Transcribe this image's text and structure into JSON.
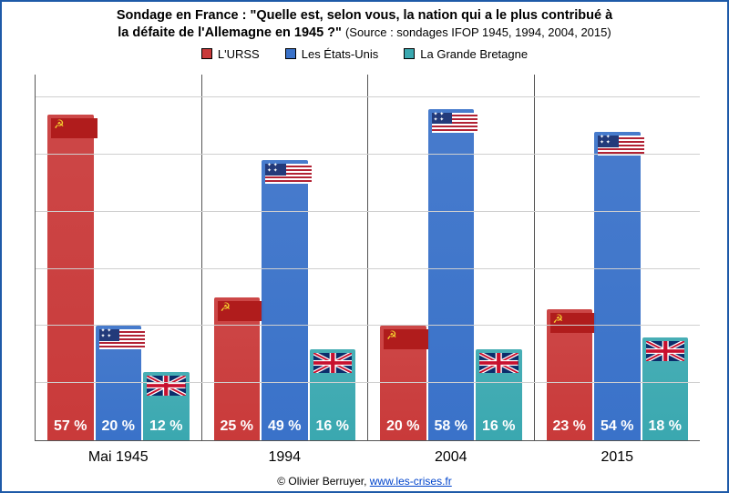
{
  "title_line1": "Sondage en France : \"Quelle est, selon vous, la nation qui a le plus contribué à",
  "title_line2": "la défaite de l'Allemagne en 1945 ?\"",
  "source_text": "(Source : sondages IFOP 1945, 1994, 2004, 2015)",
  "legend": {
    "ussr": "L'URSS",
    "us": "Les États-Unis",
    "uk": "La Grande Bretagne"
  },
  "series_colors": {
    "ussr": "#c93a3a",
    "us": "#3a72c9",
    "uk": "#3aa8b0"
  },
  "background_color": "#ffffff",
  "border_color": "#1e5aa8",
  "gridline_color": "#cfcfcf",
  "bar_label_color": "#ffffff",
  "bar_label_fontsize": 16,
  "cat_label_fontsize": 16,
  "title_fontsize": 14.5,
  "ylim_max": 64,
  "grid_step": 10,
  "chart_type": "bar",
  "categories": [
    {
      "label": "Mai 1945",
      "ussr": 57,
      "us": 20,
      "uk": 12
    },
    {
      "label": "1994",
      "ussr": 25,
      "us": 49,
      "uk": 16
    },
    {
      "label": "2004",
      "ussr": 20,
      "us": 58,
      "uk": 16
    },
    {
      "label": "2015",
      "ussr": 23,
      "us": 54,
      "uk": 18
    }
  ],
  "credit_prefix": "© Olivier Berruyer, ",
  "credit_link_text": "www.les-crises.fr"
}
